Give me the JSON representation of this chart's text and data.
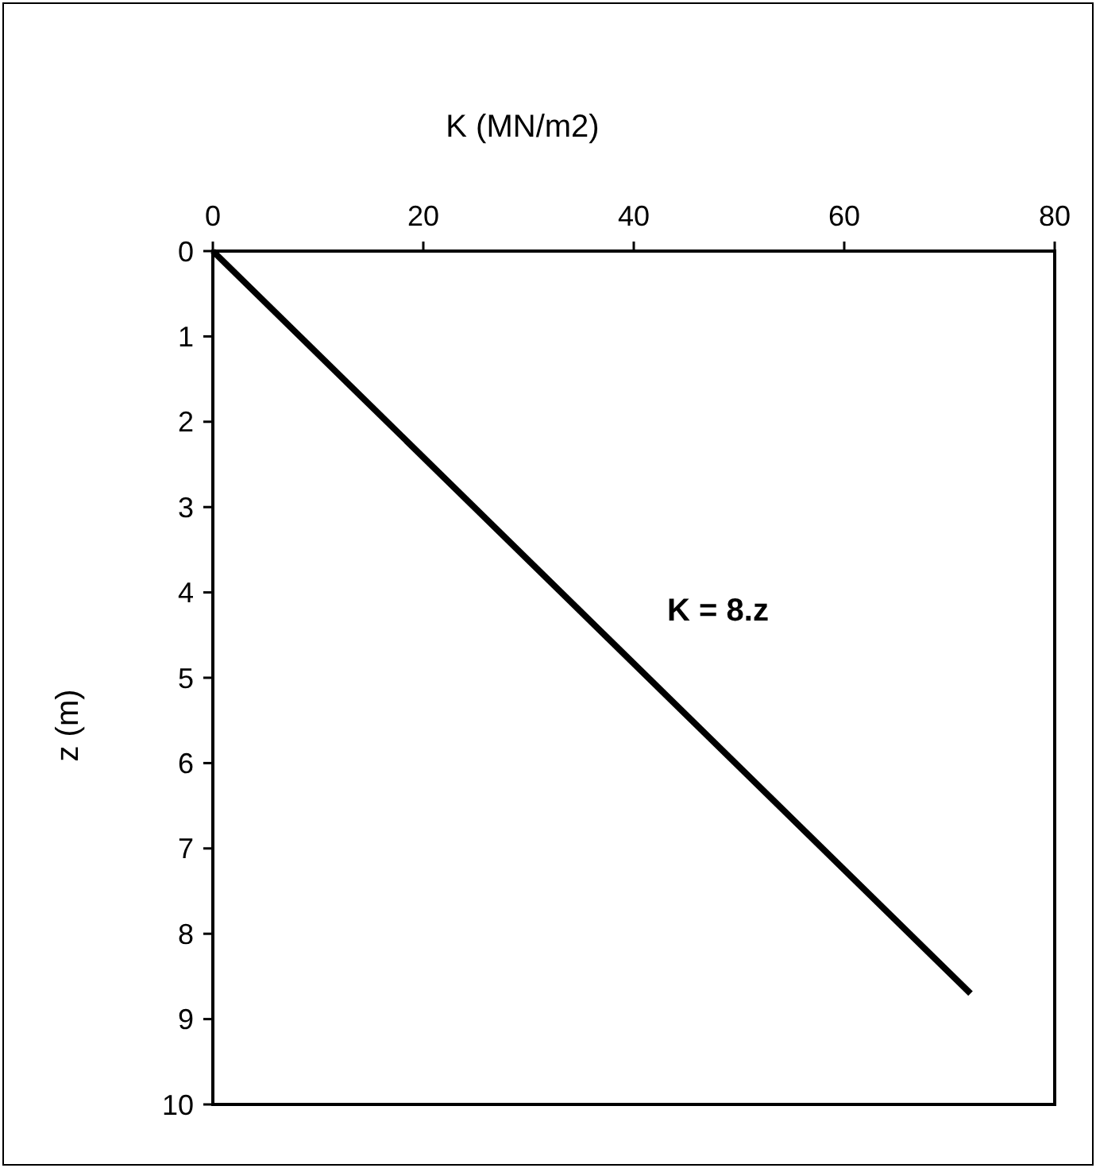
{
  "chart_data": {
    "type": "line",
    "xlabel": "K (MN/m2)",
    "ylabel": "z (m)",
    "x": [
      0,
      72
    ],
    "series": [
      {
        "color": "#000000",
        "values": [
          0,
          8.7
        ]
      }
    ],
    "xlim": [
      0,
      80
    ],
    "xticks": [
      0,
      20,
      40,
      60,
      80
    ],
    "ylim": [
      10,
      0
    ],
    "yticks": [
      0,
      1,
      2,
      3,
      4,
      5,
      6,
      7,
      8,
      9,
      10
    ],
    "annotations": [
      "K = 8.z"
    ],
    "grid": false,
    "marker": "none",
    "line_style": "solid"
  }
}
